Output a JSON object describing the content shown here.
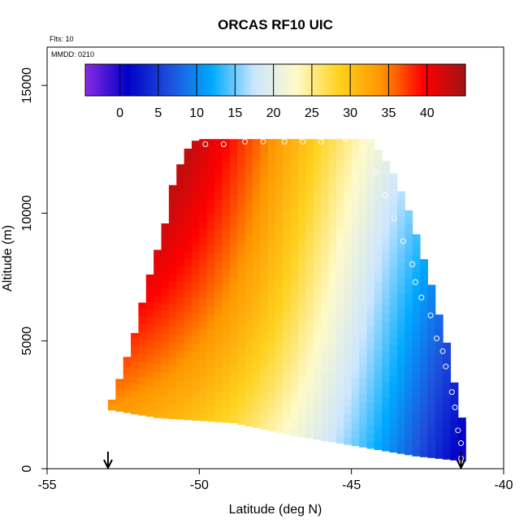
{
  "chart_data": {
    "type": "heatmap",
    "title": "ORCAS RF10 UIC",
    "flights_label": "Flts: 10",
    "date_label": "MMDD: 0210",
    "xlabel": "Latitude (deg N)",
    "ylabel": "Altitude (m)",
    "xlim": [
      -55,
      -40
    ],
    "ylim": [
      0,
      16500
    ],
    "x_ticks": [
      -55,
      -50,
      -45,
      -40
    ],
    "y_ticks": [
      0,
      5000,
      10000,
      15000
    ],
    "colorbar": {
      "range": [
        -4.5,
        45
      ],
      "ticks": [
        0,
        5,
        10,
        15,
        20,
        25,
        30,
        35,
        40
      ],
      "colors": [
        "#8a2be2",
        "#0000c8",
        "#1e50dc",
        "#00aaff",
        "#cce6ff",
        "#fffac8",
        "#ffd21e",
        "#ff9600",
        "#ff0000",
        "#a01414"
      ]
    },
    "domain": {
      "north_edge_lat": [
        -53.0,
        -52.6,
        -52.2,
        -51.9,
        -51.6,
        -51.3,
        -51.0,
        -50.6,
        -50.2
      ],
      "north_edge_alt": [
        2700,
        4000,
        5500,
        7000,
        8200,
        9300,
        11100,
        12400,
        12900
      ],
      "south_edge_lat": [
        -41.4,
        -41.5,
        -41.7,
        -41.9,
        -42.2,
        -42.5,
        -42.9,
        -43.3,
        -43.8,
        -44.5
      ],
      "south_edge_alt": [
        800,
        2000,
        3000,
        4500,
        5800,
        7200,
        8800,
        10300,
        11700,
        12900
      ],
      "bottom_lat": [
        -53.0,
        -51.5,
        -49.0,
        -47.0,
        -45.0,
        -43.0,
        -41.4
      ],
      "bottom_alt": [
        2300,
        2000,
        1800,
        1300,
        900,
        500,
        300
      ]
    },
    "colored_levels_note": "",
    "arrows_lat": [
      -53.0,
      -41.4
    ],
    "observation_points": [
      {
        "lat": -52.7,
        "alt": 4000
      },
      {
        "lat": -52.6,
        "alt": 4600
      },
      {
        "lat": -52.3,
        "alt": 6000
      },
      {
        "lat": -52.1,
        "alt": 7000
      },
      {
        "lat": -51.9,
        "alt": 7500
      },
      {
        "lat": -51.8,
        "alt": 8000
      },
      {
        "lat": -51.5,
        "alt": 9200
      },
      {
        "lat": -51.3,
        "alt": 10300
      },
      {
        "lat": -51.1,
        "alt": 11100
      },
      {
        "lat": -50.9,
        "alt": 12300
      },
      {
        "lat": -50.4,
        "alt": 12700
      },
      {
        "lat": -49.8,
        "alt": 12700
      },
      {
        "lat": -49.2,
        "alt": 12700
      },
      {
        "lat": -48.5,
        "alt": 12800
      },
      {
        "lat": -47.9,
        "alt": 12800
      },
      {
        "lat": -47.2,
        "alt": 12800
      },
      {
        "lat": -46.6,
        "alt": 12800
      },
      {
        "lat": -46.0,
        "alt": 12800
      },
      {
        "lat": -45.2,
        "alt": 12900
      },
      {
        "lat": -44.6,
        "alt": 12500
      },
      {
        "lat": -44.2,
        "alt": 11600
      },
      {
        "lat": -43.9,
        "alt": 10700
      },
      {
        "lat": -43.6,
        "alt": 9800
      },
      {
        "lat": -43.3,
        "alt": 8900
      },
      {
        "lat": -43.0,
        "alt": 8000
      },
      {
        "lat": -42.9,
        "alt": 7300
      },
      {
        "lat": -42.7,
        "alt": 6700
      },
      {
        "lat": -42.4,
        "alt": 6000
      },
      {
        "lat": -42.2,
        "alt": 5100
      },
      {
        "lat": -42.0,
        "alt": 4600
      },
      {
        "lat": -41.9,
        "alt": 4000
      },
      {
        "lat": -41.7,
        "alt": 3000
      },
      {
        "lat": -41.6,
        "alt": 2400
      },
      {
        "lat": -41.5,
        "alt": 1500
      },
      {
        "lat": -41.4,
        "alt": 1000
      },
      {
        "lat": -41.4,
        "alt": 400
      }
    ]
  }
}
